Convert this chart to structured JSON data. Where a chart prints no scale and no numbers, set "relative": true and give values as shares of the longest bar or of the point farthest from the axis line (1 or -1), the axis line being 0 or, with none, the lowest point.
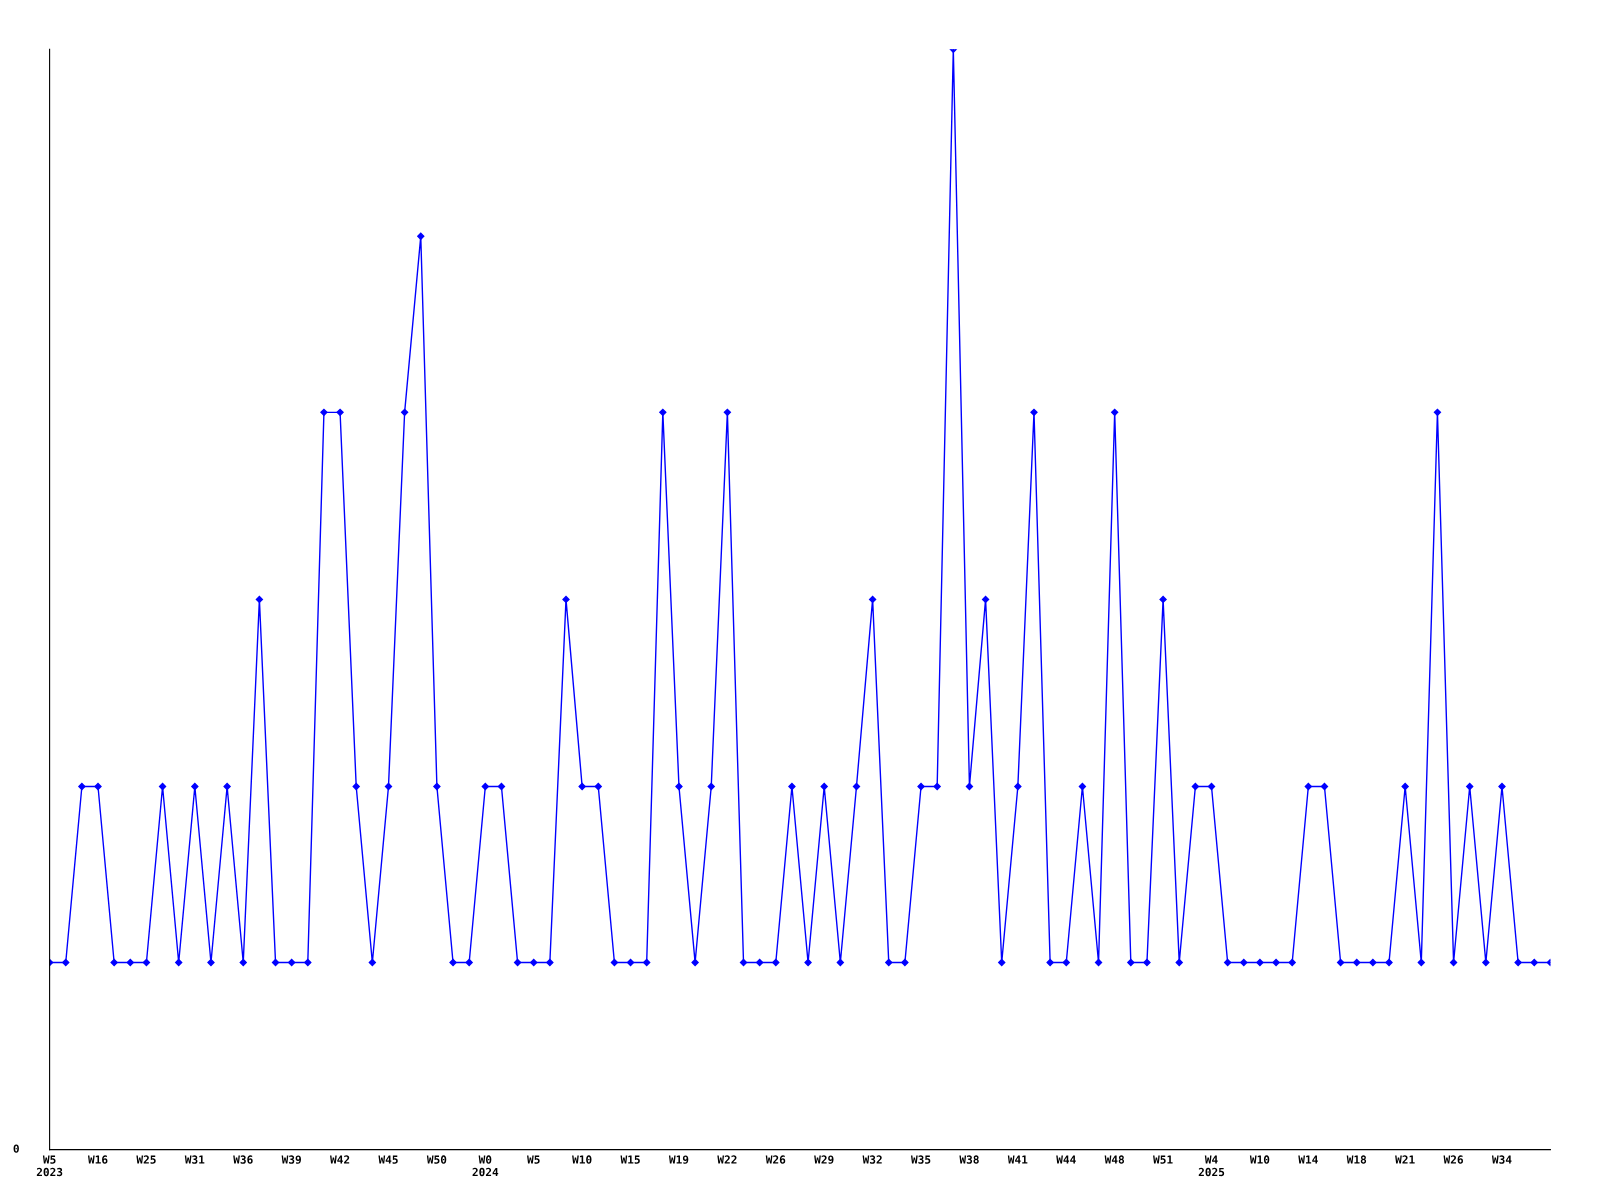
{
  "chart_data": {
    "type": "line",
    "relative": true,
    "marker": "diamond",
    "line_style": "solid",
    "grid": false,
    "legend": false,
    "categories": [
      "W5\n2023",
      null,
      null,
      "W16",
      null,
      null,
      "W25",
      null,
      null,
      "W31",
      null,
      null,
      "W36",
      null,
      null,
      "W39",
      null,
      null,
      "W42",
      null,
      null,
      "W45",
      null,
      null,
      "W50",
      null,
      null,
      "W0\n2024",
      null,
      null,
      "W5",
      null,
      null,
      "W10",
      null,
      null,
      "W15",
      null,
      null,
      "W19",
      null,
      null,
      "W22",
      null,
      null,
      "W26",
      null,
      null,
      "W29",
      null,
      null,
      "W32",
      null,
      null,
      "W35",
      null,
      null,
      "W38",
      null,
      null,
      "W41",
      null,
      null,
      "W44",
      null,
      null,
      "W48",
      null,
      null,
      "W51",
      null,
      null,
      "W4\n2025",
      null,
      null,
      "W10",
      null,
      null,
      "W14",
      null,
      null,
      "W18",
      null,
      null,
      "W21",
      null,
      null,
      "W26",
      null,
      null,
      "W34",
      null,
      null,
      null
    ],
    "series": [
      {
        "color": "#0000ff",
        "values": [
          0.17,
          0.17,
          0.33,
          0.33,
          0.17,
          0.17,
          0.17,
          0.33,
          0.17,
          0.33,
          0.17,
          0.33,
          0.17,
          0.5,
          0.17,
          0.17,
          0.17,
          0.67,
          0.67,
          0.33,
          0.17,
          0.33,
          0.67,
          0.83,
          0.33,
          0.17,
          0.17,
          0.33,
          0.33,
          0.17,
          0.17,
          0.17,
          0.5,
          0.33,
          0.33,
          0.17,
          0.17,
          0.17,
          0.67,
          0.33,
          0.17,
          0.33,
          0.67,
          0.17,
          0.17,
          0.17,
          0.33,
          0.17,
          0.33,
          0.17,
          0.33,
          0.5,
          0.17,
          0.17,
          0.33,
          0.33,
          1,
          0.33,
          0.5,
          0.17,
          0.33,
          0.67,
          0.17,
          0.17,
          0.33,
          0.17,
          0.67,
          0.17,
          0.17,
          0.5,
          0.17,
          0.33,
          0.33,
          0.17,
          0.17,
          0.17,
          0.17,
          0.17,
          0.33,
          0.33,
          0.17,
          0.17,
          0.17,
          0.17,
          0.33,
          0.17,
          0.67,
          0.17,
          0.33,
          0.17,
          0.33,
          0.17,
          0.17,
          0.17
        ]
      }
    ],
    "annotations": [
      "0"
    ]
  }
}
